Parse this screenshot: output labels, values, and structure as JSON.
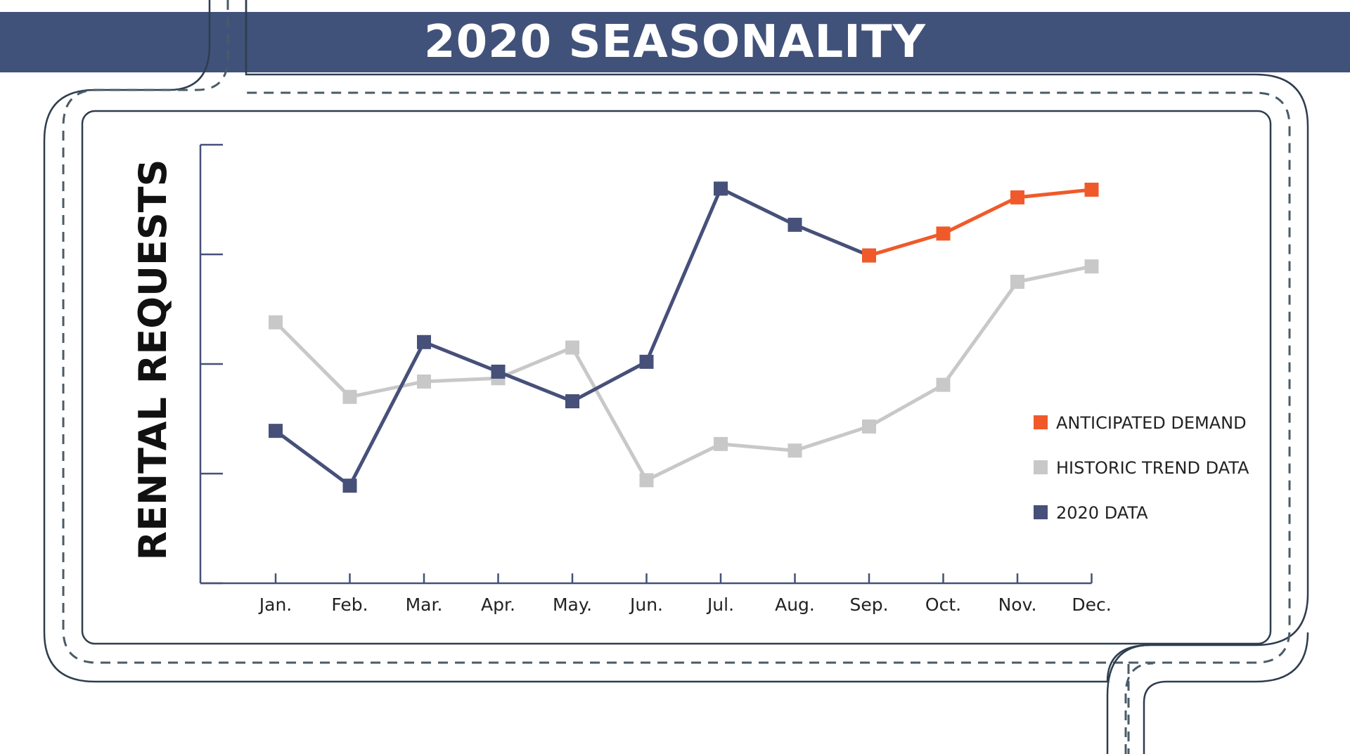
{
  "title": "2020 SEASONALITY",
  "colors": {
    "banner": "#41527a",
    "road_outline": "#2e3d4f",
    "series_2020": "#465079",
    "series_historic": "#c8c8c8",
    "series_anticipated": "#f05a2a"
  },
  "chart_data": {
    "type": "line",
    "ylabel": "RENTAL REQUESTS",
    "xlabel": "",
    "categories": [
      "Jan.",
      "Feb.",
      "Mar.",
      "Apr.",
      "May.",
      "Jun.",
      "Jul.",
      "Aug.",
      "Sep.",
      "Oct.",
      "Nov.",
      "Dec."
    ],
    "ylim": [
      0,
      4
    ],
    "y_ticks": [
      0,
      1,
      2,
      3,
      4
    ],
    "y_tick_labels_shown": false,
    "grid": false,
    "legend_position": "right",
    "legend": [
      {
        "label": "ANTICIPATED DEMAND",
        "color": "#f05a2a"
      },
      {
        "label": "HISTORIC TREND DATA",
        "color": "#c8c8c8"
      },
      {
        "label": "2020 DATA",
        "color": "#465079"
      }
    ],
    "series": [
      {
        "name": "HISTORIC TREND DATA",
        "color": "#c8c8c8",
        "x": [
          "Jan.",
          "Feb.",
          "Mar.",
          "Apr.",
          "May.",
          "Jun.",
          "Jul.",
          "Aug.",
          "Sep.",
          "Oct.",
          "Nov.",
          "Dec."
        ],
        "values": [
          2.38,
          1.7,
          1.84,
          1.87,
          2.15,
          0.94,
          1.27,
          1.21,
          1.43,
          1.81,
          2.75,
          2.89
        ]
      },
      {
        "name": "2020 DATA",
        "color": "#465079",
        "x": [
          "Jan.",
          "Feb.",
          "Mar.",
          "Apr.",
          "May.",
          "Jun.",
          "Jul.",
          "Aug.",
          "Sep."
        ],
        "values": [
          1.39,
          0.89,
          2.2,
          1.93,
          1.66,
          2.02,
          3.6,
          3.27,
          2.99
        ]
      },
      {
        "name": "ANTICIPATED DEMAND",
        "color": "#f05a2a",
        "x": [
          "Sep.",
          "Oct.",
          "Nov.",
          "Dec."
        ],
        "values": [
          2.99,
          3.19,
          3.52,
          3.59
        ]
      }
    ]
  }
}
